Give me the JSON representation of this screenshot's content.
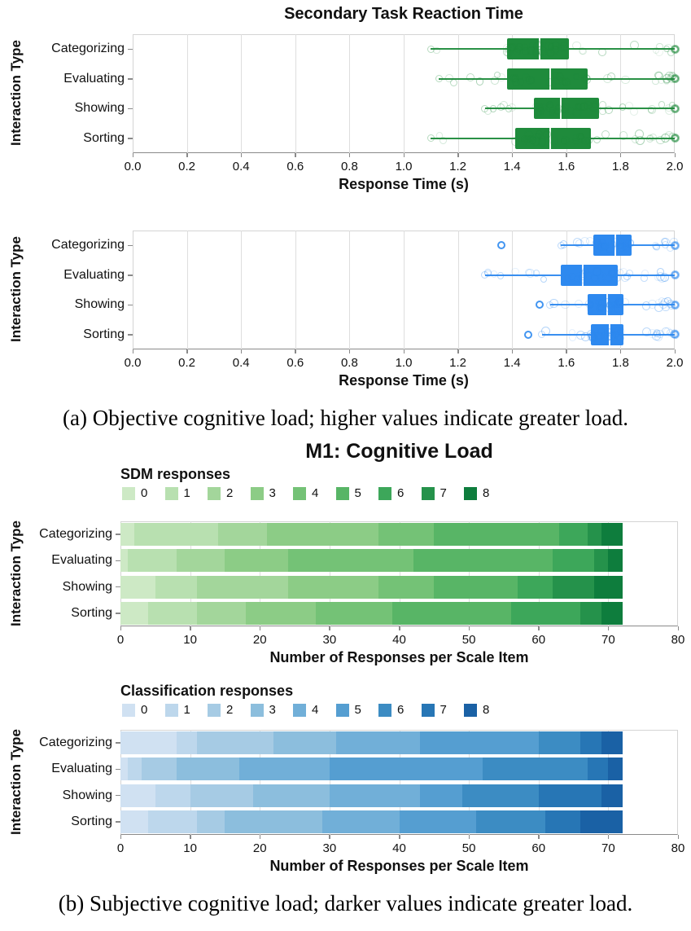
{
  "figure": {
    "caption_a": "(a) Objective cognitive load; higher values indicate greater load.",
    "caption_b": "(b) Subjective cognitive load; darker values indicate greater load."
  },
  "chart_data": [
    {
      "id": "rt_sdm",
      "type": "boxplot",
      "title": "Secondary Task Reaction Time",
      "xlabel": "Response Time (s)",
      "ylabel": "Interaction Type",
      "xlim": [
        0.0,
        2.0
      ],
      "xtick_labels": [
        "0.0",
        "0.2",
        "0.4",
        "0.6",
        "0.8",
        "1.0",
        "1.2",
        "1.4",
        "1.6",
        "1.8",
        "2.0"
      ],
      "grid": true,
      "color": "#1f8b3c",
      "categories": [
        "Categorizing",
        "Evaluating",
        "Showing",
        "Sorting"
      ],
      "boxes": [
        {
          "category": "Categorizing",
          "whisker_min": 1.1,
          "q1": 1.38,
          "median": 1.5,
          "q3": 1.61,
          "whisker_max": 2.0,
          "outliers": []
        },
        {
          "category": "Evaluating",
          "whisker_min": 1.13,
          "q1": 1.38,
          "median": 1.54,
          "q3": 1.68,
          "whisker_max": 2.0,
          "outliers": []
        },
        {
          "category": "Showing",
          "whisker_min": 1.3,
          "q1": 1.48,
          "median": 1.58,
          "q3": 1.72,
          "whisker_max": 2.0,
          "outliers": []
        },
        {
          "category": "Sorting",
          "whisker_min": 1.1,
          "q1": 1.41,
          "median": 1.54,
          "q3": 1.69,
          "whisker_max": 2.0,
          "outliers": []
        }
      ]
    },
    {
      "id": "rt_cls",
      "type": "boxplot",
      "title": "",
      "xlabel": "Response Time (s)",
      "ylabel": "Interaction Type",
      "xlim": [
        0.0,
        2.0
      ],
      "xtick_labels": [
        "0.0",
        "0.2",
        "0.4",
        "0.6",
        "0.8",
        "1.0",
        "1.2",
        "1.4",
        "1.6",
        "1.8",
        "2.0"
      ],
      "grid": true,
      "color": "#2e89ef",
      "categories": [
        "Categorizing",
        "Evaluating",
        "Showing",
        "Sorting"
      ],
      "boxes": [
        {
          "category": "Categorizing",
          "whisker_min": 1.58,
          "q1": 1.7,
          "median": 1.78,
          "q3": 1.84,
          "whisker_max": 2.0,
          "outliers": [
            1.36
          ]
        },
        {
          "category": "Evaluating",
          "whisker_min": 1.3,
          "q1": 1.58,
          "median": 1.66,
          "q3": 1.79,
          "whisker_max": 2.0,
          "outliers": []
        },
        {
          "category": "Showing",
          "whisker_min": 1.54,
          "q1": 1.68,
          "median": 1.75,
          "q3": 1.81,
          "whisker_max": 2.0,
          "outliers": [
            1.5
          ]
        },
        {
          "category": "Sorting",
          "whisker_min": 1.51,
          "q1": 1.69,
          "median": 1.76,
          "q3": 1.81,
          "whisker_max": 2.0,
          "outliers": [
            1.46
          ]
        }
      ]
    },
    {
      "id": "m1_sdm",
      "type": "stacked_bar_h",
      "title": "M1: Cognitive Load",
      "legend_title": "SDM responses",
      "legend_labels": [
        "0",
        "1",
        "2",
        "3",
        "4",
        "5",
        "6",
        "7",
        "8"
      ],
      "colors": [
        "#cde9c5",
        "#b8e0b0",
        "#a3d69b",
        "#8ccc86",
        "#74c276",
        "#58b566",
        "#3da75a",
        "#25924b",
        "#0e7d3d"
      ],
      "xlabel": "Number of Responses per Scale Item",
      "ylabel": "Interaction Type",
      "xlim": [
        0,
        80
      ],
      "xtick_labels": [
        "0",
        "10",
        "20",
        "30",
        "40",
        "50",
        "60",
        "70",
        "80"
      ],
      "bar_total": 72,
      "categories": [
        "Categorizing",
        "Evaluating",
        "Showing",
        "Sorting"
      ],
      "series": [
        {
          "category": "Categorizing",
          "values": [
            2,
            12,
            7,
            16,
            8,
            18,
            4,
            2,
            3
          ]
        },
        {
          "category": "Evaluating",
          "values": [
            1,
            7,
            7,
            9,
            18,
            20,
            6,
            2,
            2
          ]
        },
        {
          "category": "Showing",
          "values": [
            5,
            6,
            13,
            13,
            8,
            12,
            5,
            6,
            4
          ]
        },
        {
          "category": "Sorting",
          "values": [
            4,
            7,
            7,
            10,
            11,
            17,
            10,
            3,
            3
          ]
        }
      ]
    },
    {
      "id": "m1_cls",
      "type": "stacked_bar_h",
      "title": "",
      "legend_title": "Classification responses",
      "legend_labels": [
        "0",
        "1",
        "2",
        "3",
        "4",
        "5",
        "6",
        "7",
        "8"
      ],
      "colors": [
        "#d0e1f2",
        "#bdd7ec",
        "#a6cbe4",
        "#8cbedd",
        "#71afd8",
        "#559ed1",
        "#3c8cc3",
        "#2776b5",
        "#1a61a5"
      ],
      "xlabel": "Number of Responses per Scale Item",
      "ylabel": "Interaction Type",
      "xlim": [
        0,
        80
      ],
      "xtick_labels": [
        "0",
        "10",
        "20",
        "30",
        "40",
        "50",
        "60",
        "70",
        "80"
      ],
      "bar_total": 72,
      "categories": [
        "Categorizing",
        "Evaluating",
        "Showing",
        "Sorting"
      ],
      "series": [
        {
          "category": "Categorizing",
          "values": [
            8,
            3,
            11,
            9,
            12,
            17,
            6,
            3,
            3
          ]
        },
        {
          "category": "Evaluating",
          "values": [
            1,
            2,
            5,
            9,
            13,
            22,
            15,
            3,
            2
          ]
        },
        {
          "category": "Showing",
          "values": [
            5,
            5,
            9,
            11,
            13,
            6,
            11,
            9,
            3
          ]
        },
        {
          "category": "Sorting",
          "values": [
            4,
            7,
            4,
            14,
            11,
            11,
            10,
            5,
            6
          ]
        }
      ]
    }
  ]
}
